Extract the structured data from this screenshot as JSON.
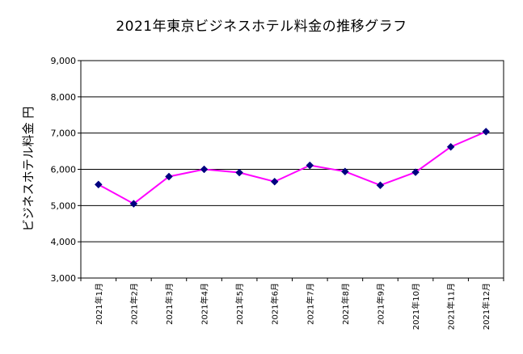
{
  "chart_data": {
    "type": "line",
    "title": "2021年東京ビジネスホテル料金の推移グラフ",
    "ylabel": "ビジネスホテル料金 円",
    "xlabel": "",
    "categories": [
      "2021年1月",
      "2021年2月",
      "2021年3月",
      "2021年4月",
      "2021年5月",
      "2021年6月",
      "2021年7月",
      "2021年8月",
      "2021年9月",
      "2021年10月",
      "2021年11月",
      "2021年12月"
    ],
    "values": [
      5580,
      5050,
      5800,
      6000,
      5910,
      5660,
      6110,
      5940,
      5560,
      5920,
      6620,
      7040
    ],
    "ylim": [
      3000,
      9000
    ],
    "yticks": [
      "3,000",
      "4,000",
      "5,000",
      "6,000",
      "7,000",
      "8,000",
      "9,000"
    ],
    "ytick_values": [
      3000,
      4000,
      5000,
      6000,
      7000,
      8000,
      9000
    ],
    "grid": true,
    "legend": "none",
    "colors": {
      "line": "#ff00ff",
      "marker": "#000080",
      "grid": "#000000",
      "frame": "#000000"
    }
  }
}
